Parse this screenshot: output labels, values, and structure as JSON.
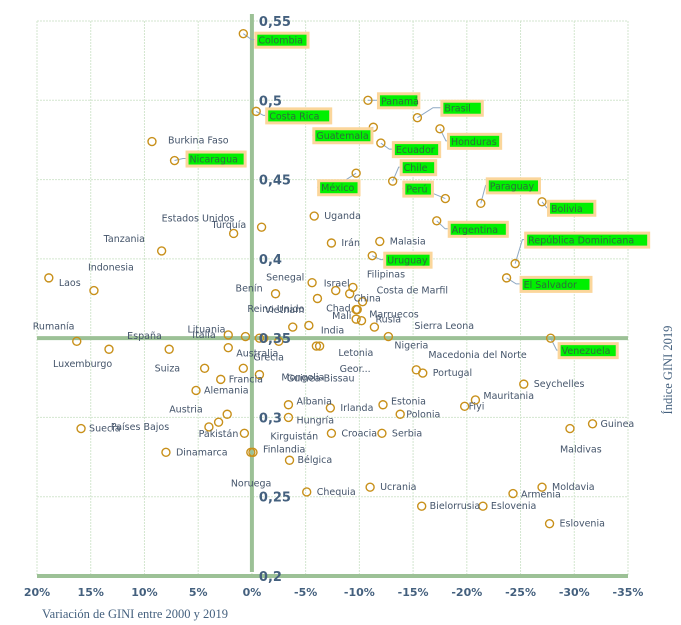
{
  "chart_data": {
    "type": "scatter",
    "title": "",
    "xlabel": "Variación de GINI entre 2000 y 2019",
    "ylabel": "Índice GINI 2019",
    "xlim": [
      20,
      -35
    ],
    "ylim": [
      0.2,
      0.55
    ],
    "x_ticks": [
      "20%",
      "15%",
      "10%",
      "5%",
      "0%",
      "-5%",
      "-10%",
      "-15%",
      "-20%",
      "-25%",
      "-30%",
      "-35%"
    ],
    "y_ticks": [
      "0,2",
      "0,25",
      "0,3",
      "0,35",
      "0,4",
      "0,45",
      "0,5",
      "0,55"
    ],
    "grid": true,
    "colors": {
      "marker": "#c8901a",
      "highlight_bg": "#fbd69b",
      "highlight_fill": "#00f000",
      "axis": "#9cc196",
      "text": "#44546a"
    },
    "points": [
      {
        "name": "Colombia",
        "x": 0.8,
        "y": 0.542,
        "hl": true
      },
      {
        "name": "Costa Rica",
        "x": -0.4,
        "y": 0.493,
        "hl": true
      },
      {
        "name": "Burkina Faso",
        "x": 9.3,
        "y": 0.474,
        "hl": false
      },
      {
        "name": "Nicaragua",
        "x": 7.2,
        "y": 0.462,
        "hl": true
      },
      {
        "name": "Panamá",
        "x": -10.8,
        "y": 0.5,
        "hl": true
      },
      {
        "name": "Brasil",
        "x": -15.4,
        "y": 0.489,
        "hl": true
      },
      {
        "name": "Guatemala",
        "x": -11.3,
        "y": 0.483,
        "hl": true
      },
      {
        "name": "Ecuador",
        "x": -12.0,
        "y": 0.473,
        "hl": true
      },
      {
        "name": "Honduras",
        "x": -17.5,
        "y": 0.482,
        "hl": true
      },
      {
        "name": "Chile",
        "x": -13.1,
        "y": 0.449,
        "hl": true
      },
      {
        "name": "México",
        "x": -9.7,
        "y": 0.454,
        "hl": true
      },
      {
        "name": "Perú",
        "x": -18.0,
        "y": 0.438,
        "hl": true
      },
      {
        "name": "Paraguay",
        "x": -21.3,
        "y": 0.435,
        "hl": true
      },
      {
        "name": "Bolivia",
        "x": -27.0,
        "y": 0.436,
        "hl": true
      },
      {
        "name": "Argentina",
        "x": -17.2,
        "y": 0.424,
        "hl": true
      },
      {
        "name": "República Dominicana",
        "x": -24.5,
        "y": 0.397,
        "hl": true
      },
      {
        "name": "El Salvador",
        "x": -23.7,
        "y": 0.388,
        "hl": true
      },
      {
        "name": "Venezuela",
        "x": -27.8,
        "y": 0.35,
        "hl": true
      },
      {
        "name": "Uruguay",
        "x": -11.2,
        "y": 0.402,
        "hl": true
      },
      {
        "name": "Estados Unidos",
        "x": 1.7,
        "y": 0.416,
        "hl": false
      },
      {
        "name": "Turquía",
        "x": -0.9,
        "y": 0.42,
        "hl": false
      },
      {
        "name": "Uganda",
        "x": -5.8,
        "y": 0.427,
        "hl": false
      },
      {
        "name": "Tanzania",
        "x": 8.4,
        "y": 0.405,
        "hl": false
      },
      {
        "name": "Irán",
        "x": -7.4,
        "y": 0.41,
        "hl": false
      },
      {
        "name": "Malasia",
        "x": -11.9,
        "y": 0.411,
        "hl": false
      },
      {
        "name": "Laos",
        "x": 18.9,
        "y": 0.388,
        "hl": false
      },
      {
        "name": "Indonesia",
        "x": 14.7,
        "y": 0.38,
        "hl": false
      },
      {
        "name": "Senegal",
        "x": -5.6,
        "y": 0.385,
        "hl": false
      },
      {
        "name": "Israel",
        "x": -7.8,
        "y": 0.38,
        "hl": false
      },
      {
        "name": "Benín",
        "x": -2.2,
        "y": 0.378,
        "hl": false
      },
      {
        "name": "Filipinas",
        "x": -9.4,
        "y": 0.382,
        "hl": false
      },
      {
        "name": "China",
        "x": -9.1,
        "y": 0.378,
        "hl": false
      },
      {
        "name": "",
        "x": -6.1,
        "y": 0.375,
        "hl": false
      },
      {
        "name": "Costa de Marfil",
        "x": -10.3,
        "y": 0.373,
        "hl": false
      },
      {
        "name": "Chad",
        "x": -9.7,
        "y": 0.368,
        "hl": false
      },
      {
        "name": "Marruecos",
        "x": -9.8,
        "y": 0.368,
        "hl": false
      },
      {
        "name": "Malí",
        "x": -9.7,
        "y": 0.362,
        "hl": false
      },
      {
        "name": "Rusia",
        "x": -10.2,
        "y": 0.361,
        "hl": false
      },
      {
        "name": "Sierra Leona",
        "x": -11.4,
        "y": 0.357,
        "hl": false
      },
      {
        "name": "Nigeria",
        "x": -12.7,
        "y": 0.351,
        "hl": false
      },
      {
        "name": "Vietnam",
        "x": -3.8,
        "y": 0.357,
        "hl": false
      },
      {
        "name": "India",
        "x": -5.3,
        "y": 0.358,
        "hl": false
      },
      {
        "name": "Lituania",
        "x": 0.6,
        "y": 0.351,
        "hl": false
      },
      {
        "name": "Reino Unido",
        "x": -0.7,
        "y": 0.35,
        "hl": false
      },
      {
        "name": "",
        "x": -1.1,
        "y": 0.35,
        "hl": false
      },
      {
        "name": "Italia",
        "x": 2.2,
        "y": 0.352,
        "hl": false
      },
      {
        "name": "Rumanía",
        "x": 16.3,
        "y": 0.348,
        "hl": false
      },
      {
        "name": "Luxemburgo",
        "x": 13.3,
        "y": 0.343,
        "hl": false
      },
      {
        "name": "España",
        "x": 7.7,
        "y": 0.343,
        "hl": false
      },
      {
        "name": "Australia",
        "x": 2.2,
        "y": 0.344,
        "hl": false
      },
      {
        "name": "Guinea-Bissau",
        "x": -2.5,
        "y": 0.348,
        "hl": false
      },
      {
        "name": "Letonia",
        "x": -6.0,
        "y": 0.345,
        "hl": false
      },
      {
        "name": "Geor...",
        "x": -6.3,
        "y": 0.345,
        "hl": false
      },
      {
        "name": "Macedonia del Norte",
        "x": -15.3,
        "y": 0.33,
        "hl": false
      },
      {
        "name": "Portugal",
        "x": -15.9,
        "y": 0.328,
        "hl": false
      },
      {
        "name": "Seychelles",
        "x": -25.3,
        "y": 0.321,
        "hl": false
      },
      {
        "name": "Suiza",
        "x": 4.4,
        "y": 0.331,
        "hl": false
      },
      {
        "name": "Grecia",
        "x": 0.8,
        "y": 0.331,
        "hl": false
      },
      {
        "name": "Francia",
        "x": 2.9,
        "y": 0.324,
        "hl": false
      },
      {
        "name": "Mongolia",
        "x": -0.7,
        "y": 0.327,
        "hl": false
      },
      {
        "name": "Alemania",
        "x": 5.2,
        "y": 0.317,
        "hl": false
      },
      {
        "name": "Mauritania",
        "x": -20.8,
        "y": 0.311,
        "hl": false
      },
      {
        "name": "Fiyi",
        "x": -19.8,
        "y": 0.307,
        "hl": false
      },
      {
        "name": "Estonia",
        "x": -12.2,
        "y": 0.308,
        "hl": false
      },
      {
        "name": "Polonia",
        "x": -13.8,
        "y": 0.302,
        "hl": false
      },
      {
        "name": "Albania",
        "x": -3.4,
        "y": 0.308,
        "hl": false
      },
      {
        "name": "Irlanda",
        "x": -7.3,
        "y": 0.306,
        "hl": false
      },
      {
        "name": "Austria",
        "x": 2.3,
        "y": 0.302,
        "hl": false
      },
      {
        "name": "Hungría",
        "x": -3.4,
        "y": 0.3,
        "hl": false
      },
      {
        "name": "Pakistán",
        "x": 3.1,
        "y": 0.297,
        "hl": false
      },
      {
        "name": "Países Bajos",
        "x": 4.0,
        "y": 0.294,
        "hl": false
      },
      {
        "name": "Suecia",
        "x": 15.9,
        "y": 0.293,
        "hl": false
      },
      {
        "name": "Guinea",
        "x": -31.7,
        "y": 0.296,
        "hl": false
      },
      {
        "name": "Maldivas",
        "x": -29.6,
        "y": 0.293,
        "hl": false
      },
      {
        "name": "Kirguistán",
        "x": 0.7,
        "y": 0.29,
        "hl": false
      },
      {
        "name": "Croacia",
        "x": -7.4,
        "y": 0.29,
        "hl": false
      },
      {
        "name": "Serbia",
        "x": -12.1,
        "y": 0.29,
        "hl": false
      },
      {
        "name": "Dinamarca",
        "x": 8.0,
        "y": 0.278,
        "hl": false
      },
      {
        "name": "Finlandia",
        "x": -0.1,
        "y": 0.278,
        "hl": false
      },
      {
        "name": "Noruega",
        "x": 0.1,
        "y": 0.278,
        "hl": false
      },
      {
        "name": "Bélgica",
        "x": -3.5,
        "y": 0.273,
        "hl": false
      },
      {
        "name": "Chequia",
        "x": -5.1,
        "y": 0.253,
        "hl": false
      },
      {
        "name": "Ucrania",
        "x": -11.0,
        "y": 0.256,
        "hl": false
      },
      {
        "name": "Moldavia",
        "x": -27.0,
        "y": 0.256,
        "hl": false
      },
      {
        "name": "Armenia",
        "x": -24.3,
        "y": 0.252,
        "hl": false
      },
      {
        "name": "Bielorrusia",
        "x": -15.8,
        "y": 0.244,
        "hl": false
      },
      {
        "name": "Eslovenia",
        "x": -21.5,
        "y": 0.244,
        "hl": false
      },
      {
        "name": "Eslovenia",
        "x": -27.7,
        "y": 0.233,
        "hl": false
      }
    ]
  }
}
